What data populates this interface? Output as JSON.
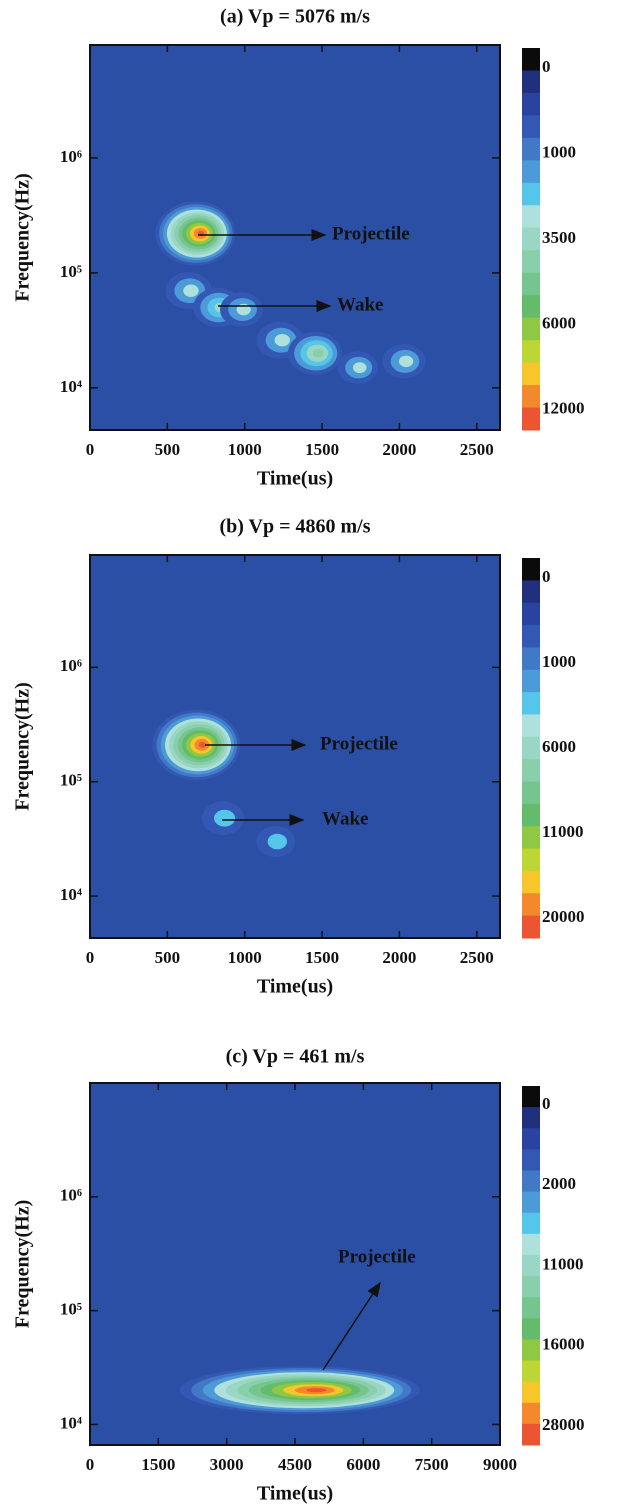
{
  "chart_data": [
    {
      "type": "spectrogram",
      "title": "(a) Vp = 5076 m/s",
      "xlabel": "Time(us)",
      "ylabel": "Frequency(Hz)",
      "xlim": [
        0,
        2650
      ],
      "xticks": [
        0,
        500,
        1000,
        1500,
        2000,
        2500
      ],
      "ylim": [
        4300,
        9600000
      ],
      "log_y": true,
      "yticks": [
        {
          "value": 10000,
          "label": "10⁴"
        },
        {
          "value": 100000,
          "label": "10⁵"
        },
        {
          "value": 1000000,
          "label": "10⁶"
        }
      ],
      "background": "#2b4fa4",
      "colorbar": {
        "colors": [
          "#0b0b0b",
          "#21307c",
          "#2a43a0",
          "#3258b4",
          "#4279c6",
          "#4c9ad8",
          "#55c6ea",
          "#aee0dc",
          "#9ad6c4",
          "#89cfac",
          "#76c48e",
          "#65bb6c",
          "#8fc842",
          "#bcd636",
          "#f6c62a",
          "#f2892c",
          "#ec5531"
        ],
        "ticks": [
          0,
          1000,
          3500,
          6000,
          12000
        ]
      },
      "hotspots": [
        {
          "x": 720,
          "y": 220000,
          "value": 12000
        },
        {
          "x": 660,
          "y": 70000,
          "value": 1500
        },
        {
          "x": 850,
          "y": 50000,
          "value": 2000
        },
        {
          "x": 1000,
          "y": 48000,
          "value": 1000
        },
        {
          "x": 1250,
          "y": 26000,
          "value": 1500
        },
        {
          "x": 1480,
          "y": 20000,
          "value": 3000
        },
        {
          "x": 1750,
          "y": 15000,
          "value": 700
        },
        {
          "x": 2050,
          "y": 17000,
          "value": 1000
        }
      ],
      "annotations": [
        "Projectile",
        "Wake"
      ]
    },
    {
      "type": "spectrogram",
      "title": "(b) Vp = 4860 m/s",
      "xlabel": "Time(us)",
      "ylabel": "Frequency(Hz)",
      "xlim": [
        0,
        2650
      ],
      "xticks": [
        0,
        500,
        1000,
        1500,
        2000,
        2500
      ],
      "ylim": [
        4300,
        9600000
      ],
      "log_y": true,
      "yticks": [
        {
          "value": 10000,
          "label": "10⁴"
        },
        {
          "value": 100000,
          "label": "10⁵"
        },
        {
          "value": 1000000,
          "label": "10⁶"
        }
      ],
      "background": "#2b4fa4",
      "colorbar": {
        "colors": [
          "#0b0b0b",
          "#21307c",
          "#2a43a0",
          "#3258b4",
          "#4279c6",
          "#4c9ad8",
          "#55c6ea",
          "#aee0dc",
          "#9ad6c4",
          "#89cfac",
          "#76c48e",
          "#65bb6c",
          "#8fc842",
          "#bcd636",
          "#f6c62a",
          "#f2892c",
          "#ec5531"
        ],
        "ticks": [
          0,
          1000,
          6000,
          11000,
          20000
        ]
      },
      "hotspots": [
        {
          "x": 730,
          "y": 210000,
          "value": 20000
        },
        {
          "x": 880,
          "y": 48000,
          "value": 800
        },
        {
          "x": 1220,
          "y": 30000,
          "value": 400
        }
      ],
      "annotations": [
        "Projectile",
        "Wake"
      ]
    },
    {
      "type": "spectrogram",
      "title": "(c) Vp = 461 m/s",
      "xlabel": "Time(us)",
      "ylabel": "Frequency(Hz)",
      "xlim": [
        0,
        9000
      ],
      "xticks": [
        0,
        1500,
        3000,
        4500,
        6000,
        7500,
        9000
      ],
      "ylim": [
        6600,
        10000000
      ],
      "log_y": true,
      "yticks": [
        {
          "value": 10000,
          "label": "10⁴"
        },
        {
          "value": 100000,
          "label": "10⁵"
        },
        {
          "value": 1000000,
          "label": "10⁶"
        }
      ],
      "background": "#2b4fa4",
      "colorbar": {
        "colors": [
          "#0b0b0b",
          "#21307c",
          "#2a43a0",
          "#3258b4",
          "#4279c6",
          "#4c9ad8",
          "#55c6ea",
          "#aee0dc",
          "#9ad6c4",
          "#89cfac",
          "#76c48e",
          "#65bb6c",
          "#8fc842",
          "#bcd636",
          "#f6c62a",
          "#f2892c",
          "#ec5531"
        ],
        "ticks": [
          0,
          2000,
          11000,
          16000,
          28000
        ]
      },
      "hotspots": [
        {
          "x": 5000,
          "y": 20000,
          "value": 28000
        }
      ],
      "annotations": [
        "Projectile"
      ]
    }
  ]
}
